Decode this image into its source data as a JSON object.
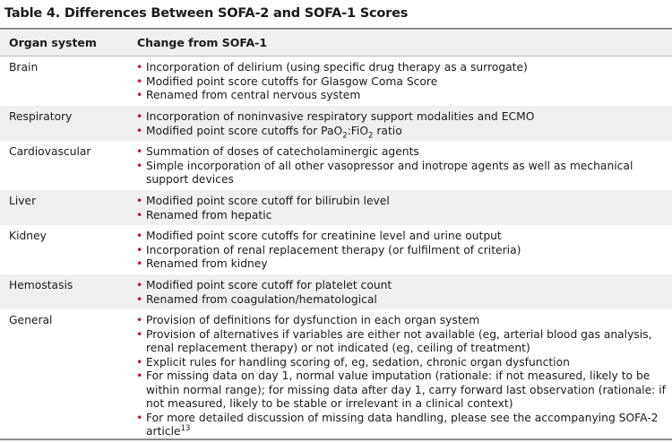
{
  "title": "Table 4. Differences Between SOFA-2 and SOFA-1 Scores",
  "header": {
    "col1": "Organ system",
    "col2": "Change from SOFA-1"
  },
  "rows": [
    {
      "organ": "Brain",
      "items": [
        "Incorporation of delirium (using specific drug therapy as a surrogate)",
        "Modified point score cutoffs for Glasgow Coma Score",
        "Renamed from central nervous system"
      ]
    },
    {
      "organ": "Respiratory",
      "items": [
        "Incorporation of noninvasive respiratory support modalities and ECMO",
        {
          "pre": "Modified point score cutoffs for PaO",
          "sub1": "2",
          "mid": ":FiO",
          "sub2": "2",
          "post": " ratio"
        }
      ]
    },
    {
      "organ": "Cardiovascular",
      "items": [
        "Summation of doses of catecholaminergic agents",
        "Simple incorporation of all other vasopressor and inotrope agents as well as mechanical support devices"
      ]
    },
    {
      "organ": "Liver",
      "items": [
        "Modified point score cutoff for bilirubin level",
        "Renamed from hepatic"
      ]
    },
    {
      "organ": "Kidney",
      "items": [
        "Modified point score cutoffs for creatinine level and urine output",
        "Incorporation of renal replacement therapy (or fulfilment of criteria)",
        "Renamed from kidney"
      ]
    },
    {
      "organ": "Hemostasis",
      "items": [
        "Modified point score cutoff for platelet count",
        "Renamed from coagulation/hematological"
      ]
    },
    {
      "organ": "General",
      "items": [
        "Provision of definitions for dysfunction in each organ system",
        "Provision of alternatives if variables are either not available (eg, arterial blood gas analysis, renal replacement therapy) or not indicated (eg, ceiling of treatment)",
        "Explicit rules for handling scoring of, eg, sedation, chronic organ dysfunction",
        "For missing data on day 1, normal value imputation (rationale: if not measured, likely to be within normal range); for missing data after day 1, carry forward last observation (rationale: if not measured, likely to be stable or irrelevant in a clinical context)",
        {
          "pre": "For more detailed discussion of missing data handling, please see the accompanying SOFA-2 article",
          "sup": "13"
        }
      ]
    }
  ],
  "colors": {
    "bullet": "#c8102e",
    "shade": "#f0f0f0",
    "rule": "#8a8a8a"
  }
}
